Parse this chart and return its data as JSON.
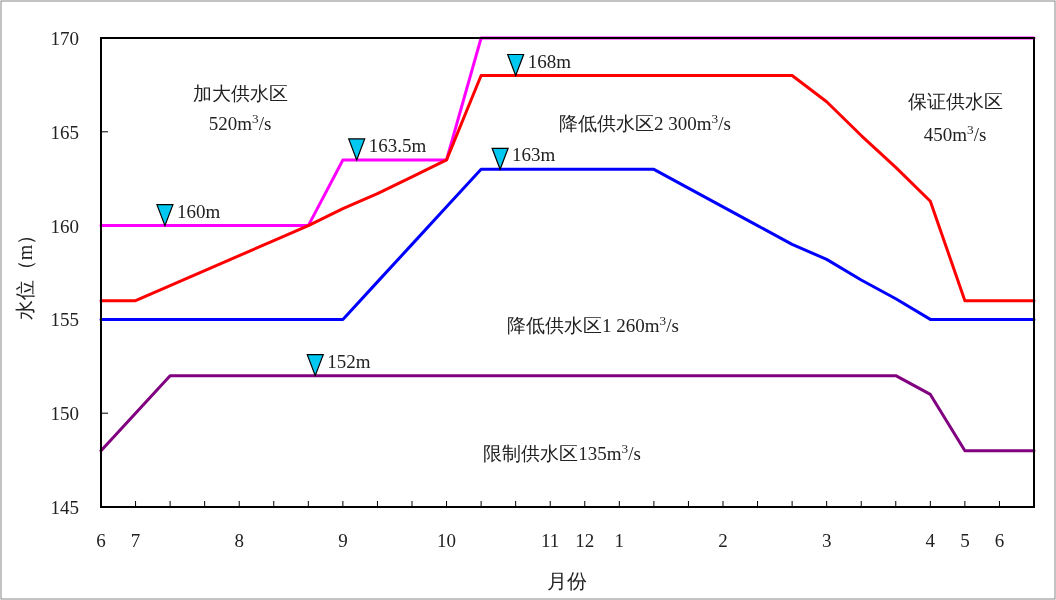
{
  "chart_data": {
    "type": "line",
    "xlabel": "月份",
    "ylabel": "水位（m）",
    "ylim": [
      145,
      170
    ],
    "yticks": [
      145,
      150,
      155,
      160,
      165,
      170
    ],
    "categories": [
      "6",
      "7",
      null,
      null,
      "8",
      null,
      null,
      "9",
      null,
      null,
      "10",
      null,
      null,
      "11",
      "12",
      "1",
      null,
      null,
      "2",
      null,
      null,
      "3",
      null,
      null,
      "4",
      "5",
      "6",
      null
    ],
    "grid": false,
    "line_style": "solid",
    "series": [
      {
        "color": "#ff00ff",
        "values": [
          160,
          160,
          160,
          160,
          160,
          160,
          160,
          163.5,
          163.5,
          163.5,
          163.5,
          170,
          170,
          170,
          170,
          170,
          170,
          170,
          170,
          170,
          170,
          170,
          170,
          170,
          170,
          170,
          170,
          170
        ]
      },
      {
        "color": "#ff0000",
        "values": [
          156,
          156,
          156.8,
          157.6,
          158.4,
          159.2,
          160,
          160.9,
          161.7,
          162.6,
          163.5,
          168,
          168,
          168,
          168,
          168,
          168,
          168,
          168,
          168,
          168,
          166.6,
          164.8,
          163.1,
          161.3,
          156,
          156,
          156
        ]
      },
      {
        "color": "#0000ff",
        "values": [
          155,
          155,
          155,
          155,
          155,
          155,
          155,
          155,
          157,
          159,
          161,
          163,
          163,
          163,
          163,
          163,
          163,
          162,
          161,
          160,
          159,
          158.2,
          157.1,
          156.1,
          155,
          155,
          155,
          155
        ]
      },
      {
        "color": "#800080",
        "values": [
          148,
          150,
          152,
          152,
          152,
          152,
          152,
          152,
          152,
          152,
          152,
          152,
          152,
          152,
          152,
          152,
          152,
          152,
          152,
          152,
          152,
          152,
          152,
          152,
          151,
          148,
          148,
          148
        ]
      }
    ],
    "annotations": [
      {
        "text": "160m",
        "y": 160
      },
      {
        "text": "163.5m",
        "y": 163.5
      },
      {
        "text": "168m",
        "y": 168
      },
      {
        "text": "163m",
        "y": 163
      },
      {
        "text": "152m",
        "y": 152
      },
      "加大供水区",
      "520m$^{3}$/s",
      "降低供水区2  300m$^{3}$/s",
      "保证供水区",
      "450m$^{3}$/s",
      "降低供水区1  260m$^{3}$/s",
      "限制供水区135m$^{3}$/s"
    ]
  }
}
